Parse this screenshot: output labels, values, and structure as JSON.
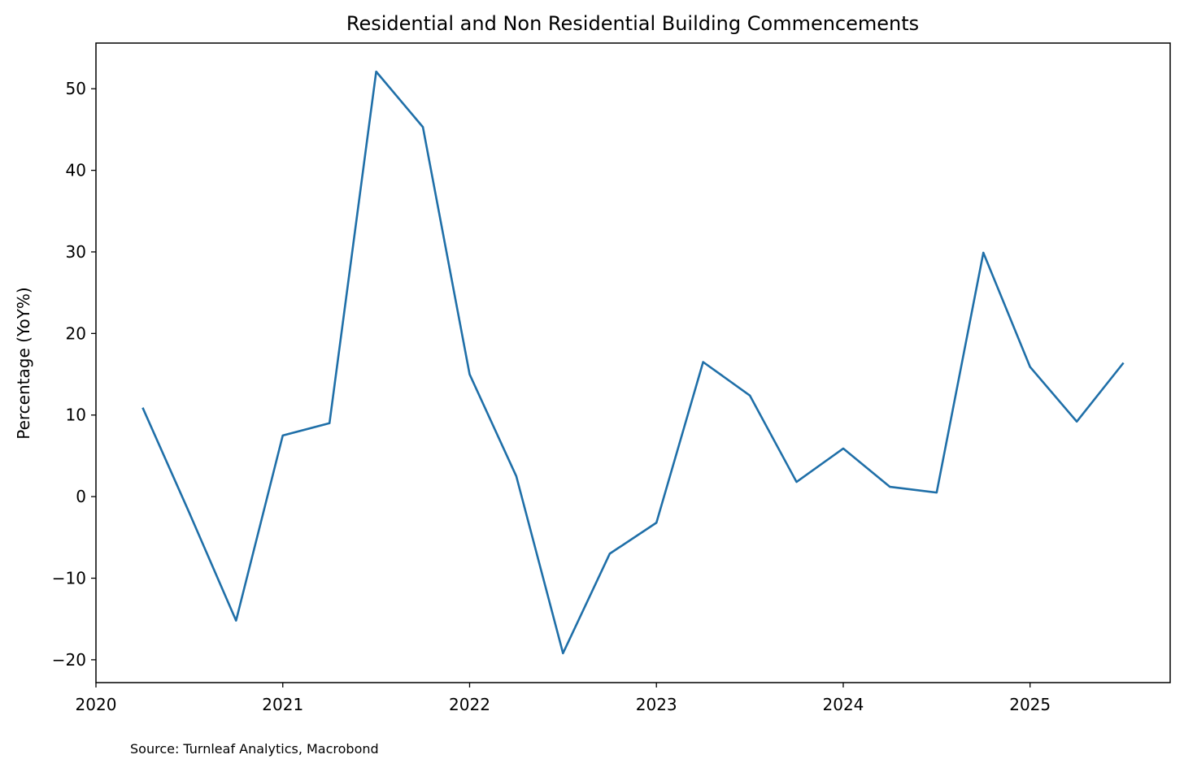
{
  "chart_data": {
    "type": "line",
    "title": "Residential and Non Residential Building Commencements",
    "xlabel": "",
    "ylabel": "Percentage (YoY%)",
    "x_tick_labels": [
      "2020",
      "2021",
      "2022",
      "2023",
      "2024",
      "2025"
    ],
    "y_tick_labels": [
      "−20",
      "−10",
      "0",
      "10",
      "20",
      "30",
      "40",
      "50"
    ],
    "x_ticks": [
      2020,
      2021,
      2022,
      2023,
      2024,
      2025
    ],
    "y_ticks": [
      -20,
      -10,
      0,
      10,
      20,
      30,
      40,
      50
    ],
    "xlim": [
      2020.0,
      2025.75
    ],
    "ylim": [
      -22.8,
      55.6
    ],
    "grid": false,
    "series": [
      {
        "color": "#1f6fa8",
        "x": [
          "2020-04-01",
          "2020-07-01",
          "2020-10-01",
          "2021-01-01",
          "2021-04-01",
          "2021-07-01",
          "2021-10-01",
          "2022-01-01",
          "2022-04-01",
          "2022-07-01",
          "2022-10-01",
          "2023-01-01",
          "2023-04-01",
          "2023-07-01",
          "2023-10-01",
          "2024-01-01",
          "2024-04-01",
          "2024-07-01",
          "2024-10-01",
          "2025-01-01",
          "2025-04-01",
          "2025-07-01"
        ],
        "values": [
          10.9,
          -2.0,
          -15.2,
          7.5,
          9.0,
          52.1,
          45.3,
          15.0,
          2.5,
          -19.2,
          -7.0,
          -3.2,
          16.5,
          12.4,
          1.8,
          5.9,
          1.2,
          0.5,
          29.9,
          15.9,
          9.2,
          16.4
        ]
      }
    ]
  },
  "footer": {
    "source": "Source: Turnleaf Analytics, Macrobond"
  }
}
